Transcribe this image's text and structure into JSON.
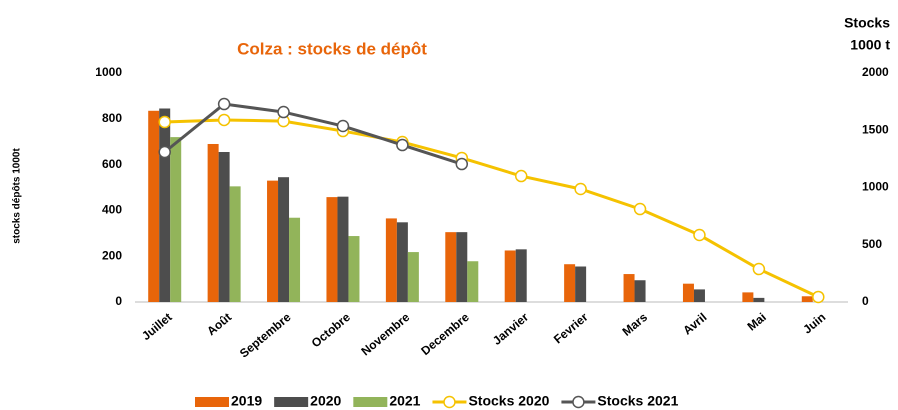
{
  "chart_data": {
    "type": "bar_line",
    "title": "Colza : stocks de dépôt",
    "ylabel": "stocks dépôts 1000t",
    "y2label": [
      "Stocks",
      "1000 t"
    ],
    "categories": [
      "Juillet",
      "Août",
      "Septembre",
      "Octobre",
      "Novembre",
      "Decembre",
      "Janvier",
      "Fevrier",
      "Mars",
      "Avril",
      "Mai",
      "Juin"
    ],
    "ylim": [
      0,
      1000
    ],
    "yticks": [
      0,
      200,
      400,
      600,
      800,
      1000
    ],
    "y2lim": [
      0,
      2000
    ],
    "y2ticks": [
      0,
      500,
      1000,
      1500,
      2000
    ],
    "series": [
      {
        "name": "2019",
        "kind": "bar",
        "color": "#e8650a",
        "values": [
          835,
          690,
          530,
          458,
          365,
          305,
          225,
          165,
          122,
          80,
          42,
          25
        ]
      },
      {
        "name": "2020",
        "kind": "bar",
        "color": "#4d4d4d",
        "values": [
          845,
          655,
          545,
          460,
          348,
          305,
          230,
          155,
          95,
          55,
          18,
          null
        ]
      },
      {
        "name": "2021",
        "kind": "bar",
        "color": "#92b45a",
        "values": [
          720,
          505,
          368,
          288,
          218,
          178,
          null,
          null,
          null,
          null,
          null,
          null
        ]
      },
      {
        "name": "Stocks 2020",
        "kind": "line",
        "axis": "y2",
        "color": "#f5c200",
        "values": [
          1572,
          1590,
          1580,
          1493,
          1397,
          1258,
          1100,
          987,
          812,
          585,
          288,
          44
        ]
      },
      {
        "name": "Stocks 2021",
        "kind": "line",
        "axis": "y2",
        "color": "#555555",
        "values": [
          1310,
          1729,
          1659,
          1537,
          1371,
          1205,
          null,
          null,
          null,
          null,
          null,
          null
        ]
      }
    ]
  }
}
